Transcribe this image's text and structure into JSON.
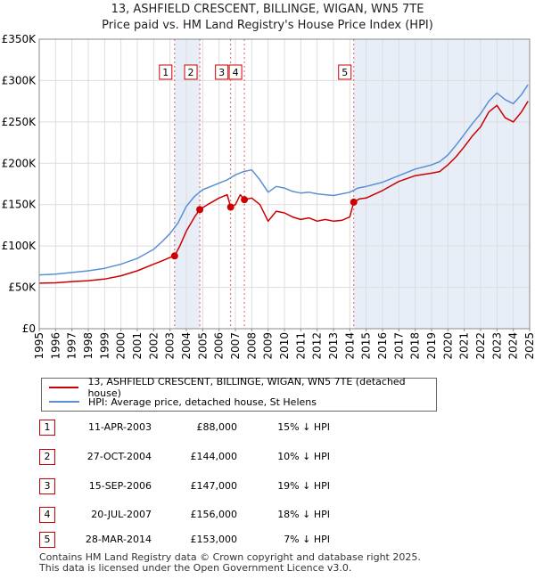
{
  "title_line1": "13, ASHFIELD CRESCENT, BILLINGE, WIGAN, WN5 7TE",
  "title_line2": "Price paid vs. HM Land Registry's House Price Index (HPI)",
  "colors": {
    "property": "#cc0000",
    "hpi": "#5b8fd4",
    "shade": "#e8eef8",
    "vline": "#e06060",
    "grid": "#dddddd"
  },
  "chart_data": {
    "type": "line",
    "title": "Price paid vs. HM Land Registry's House Price Index (HPI)",
    "xlim": [
      1995,
      2025
    ],
    "ylim": [
      0,
      350000
    ],
    "y_ticks": [
      {
        "value": 0,
        "label": "£0"
      },
      {
        "value": 50000,
        "label": "£50K"
      },
      {
        "value": 100000,
        "label": "£100K"
      },
      {
        "value": 150000,
        "label": "£150K"
      },
      {
        "value": 200000,
        "label": "£200K"
      },
      {
        "value": 250000,
        "label": "£250K"
      },
      {
        "value": 300000,
        "label": "£300K"
      },
      {
        "value": 350000,
        "label": "£350K"
      }
    ],
    "x_ticks": [
      "1995",
      "1996",
      "1997",
      "1998",
      "1999",
      "2000",
      "2001",
      "2002",
      "2003",
      "2004",
      "2005",
      "2006",
      "2007",
      "2008",
      "2009",
      "2010",
      "2011",
      "2012",
      "2013",
      "2014",
      "2015",
      "2016",
      "2017",
      "2018",
      "2019",
      "2020",
      "2021",
      "2022",
      "2023",
      "2024",
      "2025"
    ],
    "shaded_ranges": [
      [
        2003.28,
        2004.82
      ],
      [
        2014.24,
        2025.0
      ]
    ],
    "series": [
      {
        "name": "13, ASHFIELD CRESCENT, BILLINGE, WIGAN, WN5 7TE (detached house)",
        "color": "#cc0000",
        "x": [
          1995.0,
          1996.0,
          1997.0,
          1998.0,
          1999.0,
          2000.0,
          2001.0,
          2002.0,
          2002.5,
          2003.0,
          2003.28,
          2003.6,
          2004.0,
          2004.5,
          2004.82,
          2005.3,
          2006.0,
          2006.5,
          2006.71,
          2007.0,
          2007.3,
          2007.55,
          2008.0,
          2008.5,
          2009.0,
          2009.5,
          2010.0,
          2010.5,
          2011.0,
          2011.5,
          2012.0,
          2012.5,
          2013.0,
          2013.5,
          2014.0,
          2014.24,
          2014.6,
          2015.0,
          2016.0,
          2017.0,
          2018.0,
          2019.0,
          2019.5,
          2020.0,
          2020.5,
          2021.0,
          2021.5,
          2022.0,
          2022.5,
          2023.0,
          2023.5,
          2024.0,
          2024.5,
          2024.9
        ],
        "y": [
          55000,
          55500,
          57000,
          58000,
          60000,
          64000,
          70000,
          78000,
          82000,
          86000,
          88000,
          100000,
          118000,
          135000,
          144000,
          150000,
          158000,
          162000,
          147000,
          150000,
          162000,
          156000,
          158000,
          150000,
          130000,
          142000,
          140000,
          135000,
          132000,
          134000,
          130000,
          132000,
          130000,
          131000,
          135000,
          153000,
          157000,
          158000,
          167000,
          178000,
          185000,
          188000,
          190000,
          198000,
          208000,
          220000,
          233000,
          244000,
          262000,
          270000,
          255000,
          250000,
          262000,
          275000
        ]
      },
      {
        "name": "HPI: Average price, detached house, St Helens",
        "color": "#5b8fd4",
        "x": [
          1995.0,
          1996.0,
          1997.0,
          1998.0,
          1999.0,
          2000.0,
          2001.0,
          2002.0,
          2002.5,
          2003.0,
          2003.5,
          2004.0,
          2004.5,
          2005.0,
          2005.5,
          2006.0,
          2006.5,
          2007.0,
          2007.5,
          2008.0,
          2008.5,
          2009.0,
          2009.5,
          2010.0,
          2010.5,
          2011.0,
          2011.5,
          2012.0,
          2012.5,
          2013.0,
          2013.5,
          2014.0,
          2014.5,
          2015.0,
          2016.0,
          2017.0,
          2018.0,
          2019.0,
          2019.5,
          2020.0,
          2020.5,
          2021.0,
          2021.5,
          2022.0,
          2022.5,
          2023.0,
          2023.5,
          2024.0,
          2024.5,
          2024.9
        ],
        "y": [
          65000,
          66000,
          68000,
          70000,
          73000,
          78000,
          85000,
          96000,
          105000,
          115000,
          128000,
          148000,
          160000,
          168000,
          172000,
          176000,
          180000,
          186000,
          190000,
          192000,
          180000,
          165000,
          172000,
          170000,
          166000,
          164000,
          165000,
          163000,
          162000,
          161000,
          163000,
          165000,
          170000,
          172000,
          177000,
          185000,
          193000,
          198000,
          202000,
          210000,
          222000,
          235000,
          248000,
          260000,
          275000,
          285000,
          277000,
          272000,
          283000,
          295000
        ]
      }
    ],
    "sales": [
      {
        "label": "1",
        "x": 2003.28,
        "value": 88000
      },
      {
        "label": "2",
        "x": 2004.82,
        "value": 144000
      },
      {
        "label": "3",
        "x": 2006.71,
        "value": 147000
      },
      {
        "label": "4",
        "x": 2007.55,
        "value": 156000
      },
      {
        "label": "5",
        "x": 2014.24,
        "value": 153000
      }
    ]
  },
  "legend": [
    {
      "label": "13, ASHFIELD CRESCENT, BILLINGE, WIGAN, WN5 7TE (detached house)",
      "color": "#cc0000"
    },
    {
      "label": "HPI: Average price, detached house, St Helens",
      "color": "#5b8fd4"
    }
  ],
  "sales_table": [
    {
      "num": "1",
      "date": "11-APR-2003",
      "price": "£88,000",
      "hpi": "15% ↓ HPI"
    },
    {
      "num": "2",
      "date": "27-OCT-2004",
      "price": "£144,000",
      "hpi": "10% ↓ HPI"
    },
    {
      "num": "3",
      "date": "15-SEP-2006",
      "price": "£147,000",
      "hpi": "19% ↓ HPI"
    },
    {
      "num": "4",
      "date": "20-JUL-2007",
      "price": "£156,000",
      "hpi": "18% ↓ HPI"
    },
    {
      "num": "5",
      "date": "28-MAR-2014",
      "price": "£153,000",
      "hpi": "7% ↓ HPI"
    }
  ],
  "footer_line1": "Contains HM Land Registry data © Crown copyright and database right 2025.",
  "footer_line2": "This data is licensed under the Open Government Licence v3.0."
}
